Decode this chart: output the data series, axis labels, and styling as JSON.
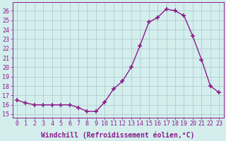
{
  "x": [
    0,
    1,
    2,
    3,
    4,
    5,
    6,
    7,
    8,
    9,
    10,
    11,
    12,
    13,
    14,
    15,
    16,
    17,
    18,
    19,
    20,
    21,
    22,
    23
  ],
  "y": [
    16.5,
    16.2,
    16.0,
    16.0,
    16.0,
    16.0,
    16.0,
    15.7,
    15.3,
    15.3,
    16.3,
    17.7,
    18.5,
    20.0,
    22.3,
    24.8,
    25.3,
    26.2,
    26.0,
    25.5,
    23.3,
    20.8,
    18.0,
    17.3
  ],
  "line_color": "#8b1a8b",
  "marker": "+",
  "marker_size": 4,
  "marker_lw": 1.2,
  "bg_color": "#d4eeee",
  "grid_color": "#b0cccc",
  "xlabel": "Windchill (Refroidissement éolien,°C)",
  "ytick_labels": [
    "15",
    "16",
    "17",
    "18",
    "19",
    "20",
    "21",
    "22",
    "23",
    "24",
    "25",
    "26"
  ],
  "ytick_values": [
    15,
    16,
    17,
    18,
    19,
    20,
    21,
    22,
    23,
    24,
    25,
    26
  ],
  "ylim": [
    14.6,
    26.9
  ],
  "xlim": [
    -0.5,
    23.5
  ],
  "label_color": "#8b1a8b",
  "tick_fontsize": 6.0,
  "xlabel_fontsize": 7.0,
  "linewidth": 1.0
}
